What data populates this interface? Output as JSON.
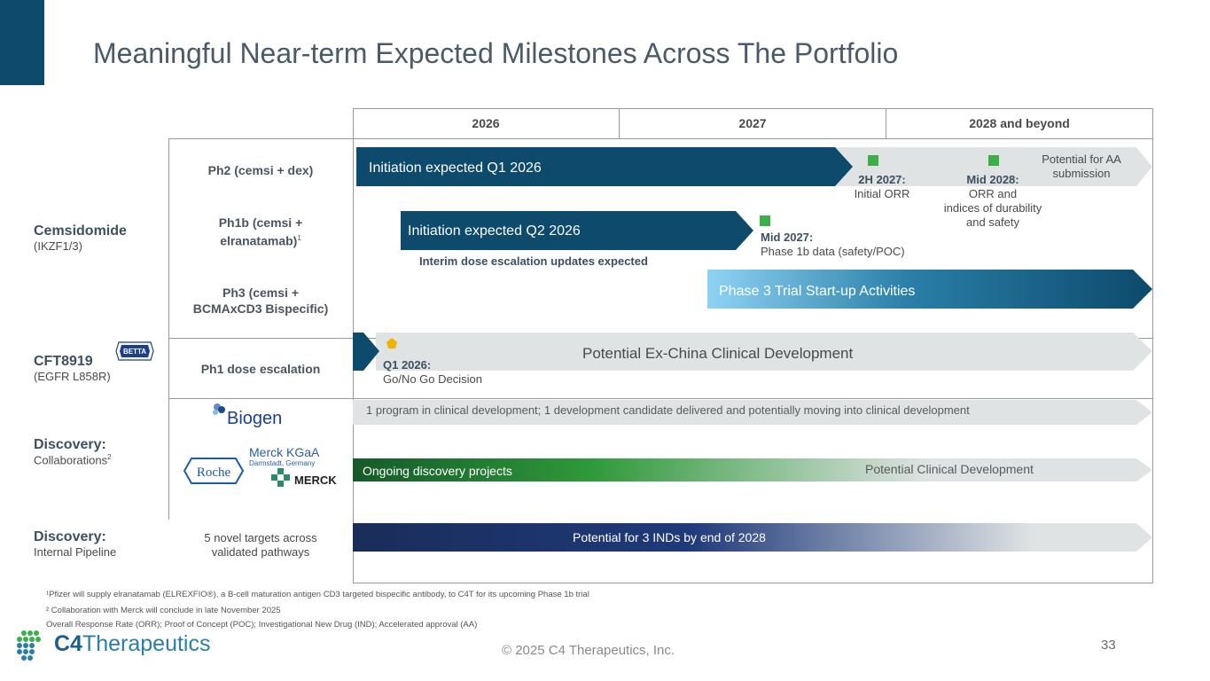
{
  "title": "Meaningful Near-term Expected Milestones Across The Portfolio",
  "years": [
    "2026",
    "2027",
    "2028 and beyond"
  ],
  "programs": {
    "cemsidomide": {
      "name": "Cemsidomide",
      "target": "(IKZF1/3)"
    },
    "cft8919": {
      "name": "CFT8919",
      "target": "(EGFR L858R)",
      "partner_logo": "BETTA"
    },
    "disc_collab": {
      "name": "Discovery:",
      "sub": "Collaborations",
      "sup": "2"
    },
    "disc_internal": {
      "name": "Discovery:",
      "sub": "Internal Pipeline"
    }
  },
  "rows": {
    "ph2": "Ph2 (cemsi + dex)",
    "ph1b_line1": "Ph1b (cemsi +",
    "ph1b_line2": "elranatamab)",
    "ph1b_sup": "1",
    "ph3_line1": "Ph3 (cemsi +",
    "ph3_line2": "BCMAxCD3 Bispecific)",
    "ph1dose": "Ph1 dose escalation",
    "internal_line1": "5 novel targets across",
    "internal_line2": "validated pathways"
  },
  "partners": {
    "biogen": "Biogen",
    "merck_kgaa": "Merck KGaA",
    "merck_sub": "Darmstadt, Germany",
    "merck": "MERCK",
    "roche": "Roche"
  },
  "bars": {
    "ph2_initiation": "Initiation expected Q1 2026",
    "ph2_potential_line1": "Potential for AA",
    "ph2_potential_line2": "submission",
    "ph1b_initiation": "Initiation expected Q2 2026",
    "ph1b_interim": "Interim dose escalation updates expected",
    "ph3": "Phase 3 Trial Start-up Activities",
    "cft_exchina": "Potential Ex-China Clinical Development",
    "collab_programs": "1 program in clinical development; 1 development candidate delivered and potentially moving into clinical development",
    "collab_ongoing": "Ongoing discovery projects",
    "collab_potential": "Potential Clinical Development",
    "internal_inds": "Potential for 3 INDs by end of 2028"
  },
  "milestones": {
    "m1_head": "2H 2027:",
    "m1_body": "Initial ORR",
    "m2_head": "Mid 2028:",
    "m2_body1": "ORR and",
    "m2_body2": "indices of durability",
    "m2_body3": "and safety",
    "m3_head": "Mid 2027:",
    "m3_body": "Phase 1b data (safety/POC)",
    "m4_head": "Q1 2026:",
    "m4_body": "Go/No Go Decision"
  },
  "footnotes": {
    "f1": "¹Pfizer will supply elranatamab (ELREXFIO®), a B-cell maturation antigen CD3 targeted bispecific antibody, to C4T for its upcoming Phase 1b trial",
    "f2": "² Collaboration with Merck will conclude in late November 2025",
    "f3": "Overall Response Rate (ORR); Proof of Concept (POC); Investigational New Drug (IND); Accelerated approval (AA)"
  },
  "company": {
    "c4": "C4",
    "name": "Therapeutics"
  },
  "copyright": "© 2025 C4 Therapeutics, Inc.",
  "page_number": "33",
  "colors": {
    "navy": "#0d4a6b",
    "milestone_green": "#3cae4a",
    "gold": "#f0b400",
    "light_arrow": "#dfe3e4"
  }
}
